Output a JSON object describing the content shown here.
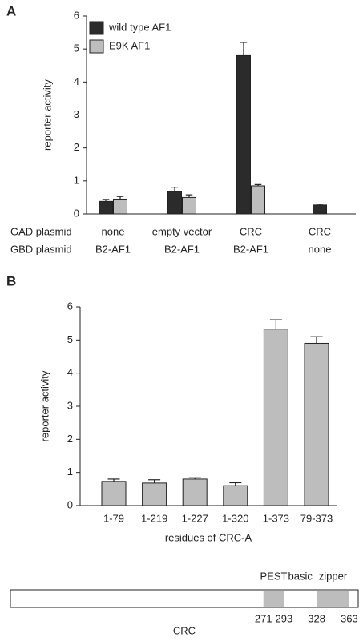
{
  "chart_data": [
    {
      "type": "bar",
      "panel": "A",
      "ylabel": "reporter activity",
      "ylim": [
        0,
        6
      ],
      "yticks": [
        0,
        1,
        2,
        3,
        4,
        5,
        6
      ],
      "category_levels": [
        "GAD plasmid",
        "GBD plasmid"
      ],
      "categories": [
        [
          "none",
          "B2-AF1"
        ],
        [
          "empty vector",
          "B2-AF1"
        ],
        [
          "CRC",
          "B2-AF1"
        ],
        [
          "CRC",
          "none"
        ]
      ],
      "legend": "upper left",
      "series": [
        {
          "name": "wild type AF1",
          "color": "#2b2b2b",
          "values": [
            0.38,
            0.68,
            4.8,
            0.27
          ],
          "errors": [
            0.06,
            0.13,
            0.4,
            0.03
          ]
        },
        {
          "name": "E9K AF1",
          "color": "#bdbdbd",
          "values": [
            0.45,
            0.5,
            0.85,
            null
          ],
          "errors": [
            0.08,
            0.08,
            0.04,
            null
          ]
        }
      ]
    },
    {
      "type": "bar",
      "panel": "B",
      "ylabel": "reporter activity",
      "xlabel": "residues of CRC-A",
      "ylim": [
        0,
        6
      ],
      "yticks": [
        0,
        1,
        2,
        3,
        4,
        5,
        6
      ],
      "categories": [
        "1-79",
        "1-219",
        "1-227",
        "1-320",
        "1-373",
        "79-373"
      ],
      "color": "#bdbdbd",
      "values": [
        0.73,
        0.68,
        0.8,
        0.6,
        5.33,
        4.9
      ],
      "errors": [
        0.07,
        0.1,
        0.04,
        0.09,
        0.28,
        0.2
      ]
    }
  ],
  "diagram": {
    "name": "CRC",
    "color": "#bdbdbd",
    "domains": [
      {
        "label": "PEST",
        "start": 271,
        "end": 293
      },
      {
        "label": "basic"
      },
      {
        "label": "zipper",
        "start": 328,
        "end": 363
      }
    ]
  }
}
